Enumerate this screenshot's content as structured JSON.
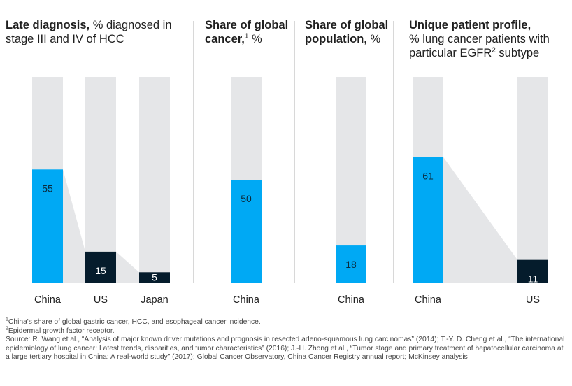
{
  "panels": [
    {
      "id": "late-diagnosis",
      "title_bold": "Late diagnosis,",
      "title_rest": " % diagnosed in stage III and IV of HCC",
      "title_sup": ""
    },
    {
      "id": "share-cancer",
      "title_bold": "Share of global cancer,",
      "title_sup": "1",
      "title_rest": " %"
    },
    {
      "id": "share-population",
      "title_bold": "Share of global population,",
      "title_sup": "",
      "title_rest": " %"
    },
    {
      "id": "patient-profile",
      "title_bold": "Unique patient profile,",
      "title_rest": "% lung cancer patients with particular EGFR",
      "title_sup": "2",
      "title_tail": " subtype"
    }
  ],
  "colors": {
    "china": "#00a9f4",
    "other": "#051c2c",
    "track": "#e5e6e8",
    "divider": "#d8d8d8"
  },
  "chart_data": [
    {
      "type": "bar",
      "title": "Late diagnosis, % diagnosed in stage III and IV of HCC",
      "categories": [
        "China",
        "US",
        "Japan"
      ],
      "values": [
        55,
        15,
        5
      ],
      "ylim": [
        0,
        100
      ],
      "unit": "%"
    },
    {
      "type": "bar",
      "title": "Share of global cancer, %",
      "categories": [
        "China"
      ],
      "values": [
        50
      ],
      "ylim": [
        0,
        100
      ],
      "unit": "%"
    },
    {
      "type": "bar",
      "title": "Share of global population, %",
      "categories": [
        "China"
      ],
      "values": [
        18
      ],
      "ylim": [
        0,
        100
      ],
      "unit": "%"
    },
    {
      "type": "bar",
      "title": "Unique patient profile, % lung cancer patients with particular EGFR subtype",
      "categories": [
        "China",
        "US"
      ],
      "values": [
        61,
        11
      ],
      "ylim": [
        0,
        100
      ],
      "unit": "%"
    }
  ],
  "footnotes": {
    "note1_marker": "1",
    "note1": "China's share of global gastric cancer, HCC, and esophageal cancer incidence.",
    "note2_marker": "2",
    "note2": "Epidermal growth factor receptor.",
    "source": "Source: R. Wang et al., “Analysis of major known driver mutations and prognosis in resected adeno-squamous lung carcinomas” (2014); T.-Y. D. Cheng et al., “The international epidemiology of lung cancer: Latest trends, disparities, and tumor characteristics” (2016); J.-H. Zhong et al., “Tumor stage and primary treatment of hepatocellular carcinoma at a large tertiary hospital in China: A real-world study” (2017); Global Cancer Observatory, China Cancer Registry annual report; McKinsey analysis"
  }
}
